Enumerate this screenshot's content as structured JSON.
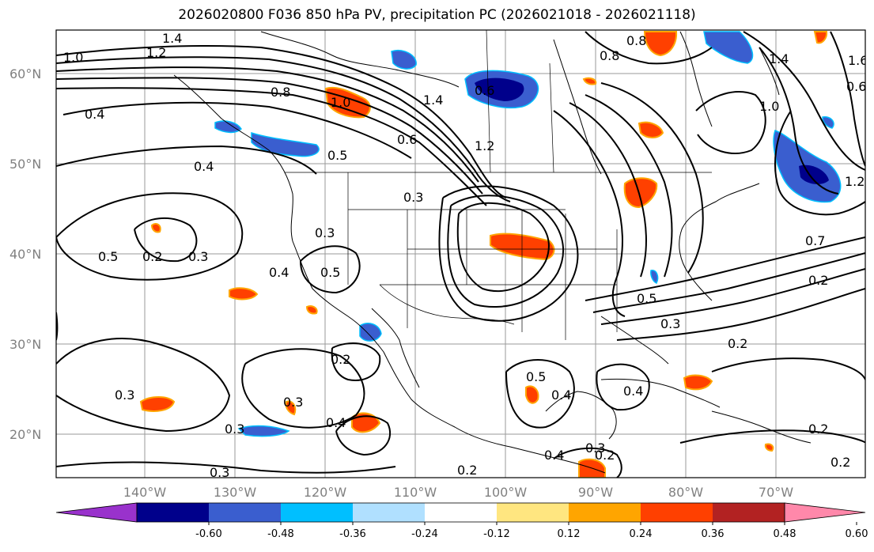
{
  "title": "2026020800 F036 850 hPa PV, precipitation PC (2026021018 - 2026021118)",
  "map": {
    "lat_labels": [
      "60°N",
      "50°N",
      "40°N",
      "30°N",
      "20°N"
    ],
    "lon_labels": [
      "140°W",
      "130°W",
      "120°W",
      "110°W",
      "100°W",
      "90°W",
      "80°W",
      "70°W"
    ],
    "contour_labels": [
      "1.0",
      "1.2",
      "1.4",
      "0.4",
      "0.8",
      "1.4",
      "1.0",
      "0.6",
      "0.4",
      "0.5",
      "0.6",
      "1.2",
      "0.3",
      "0.5",
      "0.2",
      "0.3",
      "0.3",
      "0.5",
      "0.4",
      "0.3",
      "0.5",
      "0.3",
      "0.2",
      "0.3",
      "0.3",
      "0.4",
      "0.3",
      "0.2",
      "0.5",
      "0.4",
      "0.4",
      "0.2",
      "0.4",
      "0.2",
      "0.3",
      "0.2",
      "0.2",
      "0.7",
      "0.2",
      "0.8",
      "1.4",
      "1.0",
      "1.2",
      "0.6",
      "0.8",
      "1.6"
    ]
  },
  "colorbar": {
    "colors": [
      "#9932cc",
      "#00008b",
      "#3a5ecf",
      "#00bfff",
      "#b0e0ff",
      "#ffffff",
      "#ffe680",
      "#ffa500",
      "#ff4000",
      "#b22222",
      "#ff88aa"
    ],
    "tick_labels": [
      "-0.60",
      "-0.48",
      "-0.36",
      "-0.24",
      "-0.12",
      "0.12",
      "0.24",
      "0.36",
      "0.48",
      "0.60"
    ]
  }
}
